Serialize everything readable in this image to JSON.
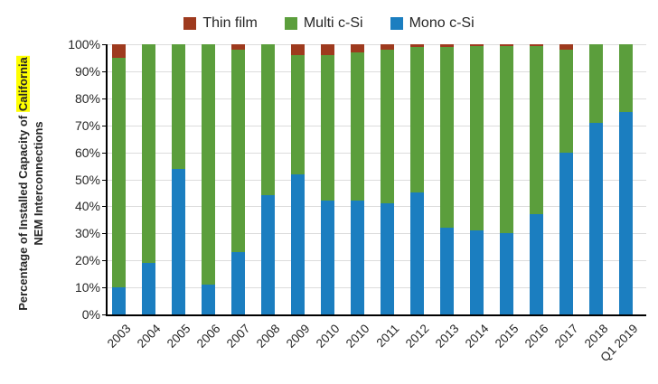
{
  "legend": [
    {
      "label": "Thin film",
      "color": "#9E3A1E"
    },
    {
      "label": "Multi c-Si",
      "color": "#5B9E3C"
    },
    {
      "label": "Mono c-Si",
      "color": "#1B7EC0"
    }
  ],
  "y_axis_title": {
    "line1_prefix": "Percentage of Installed Capacity of ",
    "line1_highlight": "California",
    "highlight_color": "#FFFF00",
    "line2": "NEM Interconnections"
  },
  "chart_data": {
    "type": "bar",
    "stacked": true,
    "title": "",
    "xlabel": "",
    "ylabel": "Percentage of Installed Capacity of California NEM Interconnections",
    "ylim": [
      0,
      100
    ],
    "grid": true,
    "legend_position": "top",
    "yticks": [
      "0%",
      "10%",
      "20%",
      "30%",
      "40%",
      "50%",
      "60%",
      "70%",
      "80%",
      "90%",
      "100%"
    ],
    "categories": [
      "2003",
      "2004",
      "2005",
      "2006",
      "2007",
      "2008",
      "2009",
      "2010",
      "2010",
      "2011",
      "2012",
      "2013",
      "2014",
      "2015",
      "2016",
      "2017",
      "2018",
      "Q1 2019"
    ],
    "series": [
      {
        "name": "Mono c-Si",
        "color": "#1B7EC0",
        "values": [
          10,
          19,
          54,
          11,
          23,
          44,
          52,
          42,
          42,
          41,
          45,
          32,
          31,
          30,
          37,
          60,
          71,
          75
        ]
      },
      {
        "name": "Multi c-Si",
        "color": "#5B9E3C",
        "values": [
          85,
          81,
          46,
          89,
          75,
          56,
          44,
          54,
          55,
          57,
          54,
          67,
          68.5,
          69.5,
          62.5,
          38,
          29,
          25
        ]
      },
      {
        "name": "Thin film",
        "color": "#9E3A1E",
        "values": [
          5,
          0,
          0,
          0,
          2,
          0,
          4,
          4,
          3,
          2,
          1,
          1,
          0.5,
          0.5,
          0.5,
          2,
          0,
          0
        ]
      }
    ]
  }
}
